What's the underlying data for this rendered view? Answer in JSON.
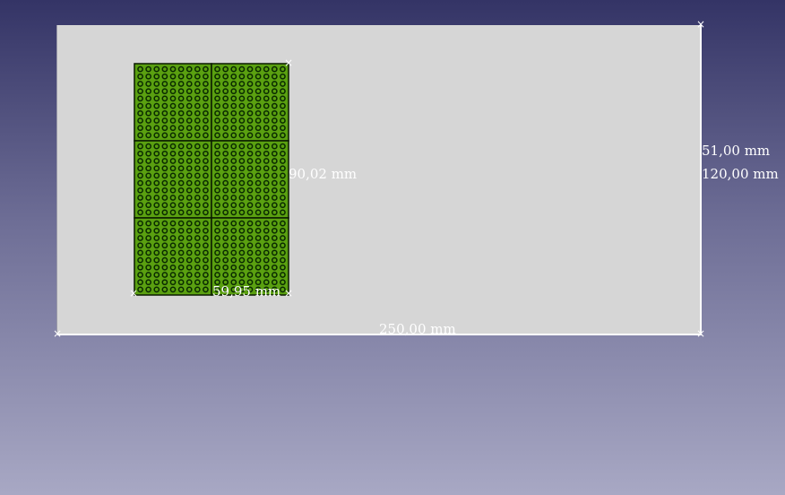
{
  "sheet": {
    "width_label": "250,00 mm",
    "height_label": "120,00 mm",
    "offset_label": "51,00 mm"
  },
  "panel": {
    "width_label": "59,95 mm",
    "height_label": "90,02 mm",
    "grid_cols": 2,
    "grid_rows": 3,
    "holes_cols": 9,
    "holes_rows": 10,
    "fill_color": "#5aa010",
    "hole_color": "#0a2a00",
    "border_color": "#0a1a00"
  }
}
